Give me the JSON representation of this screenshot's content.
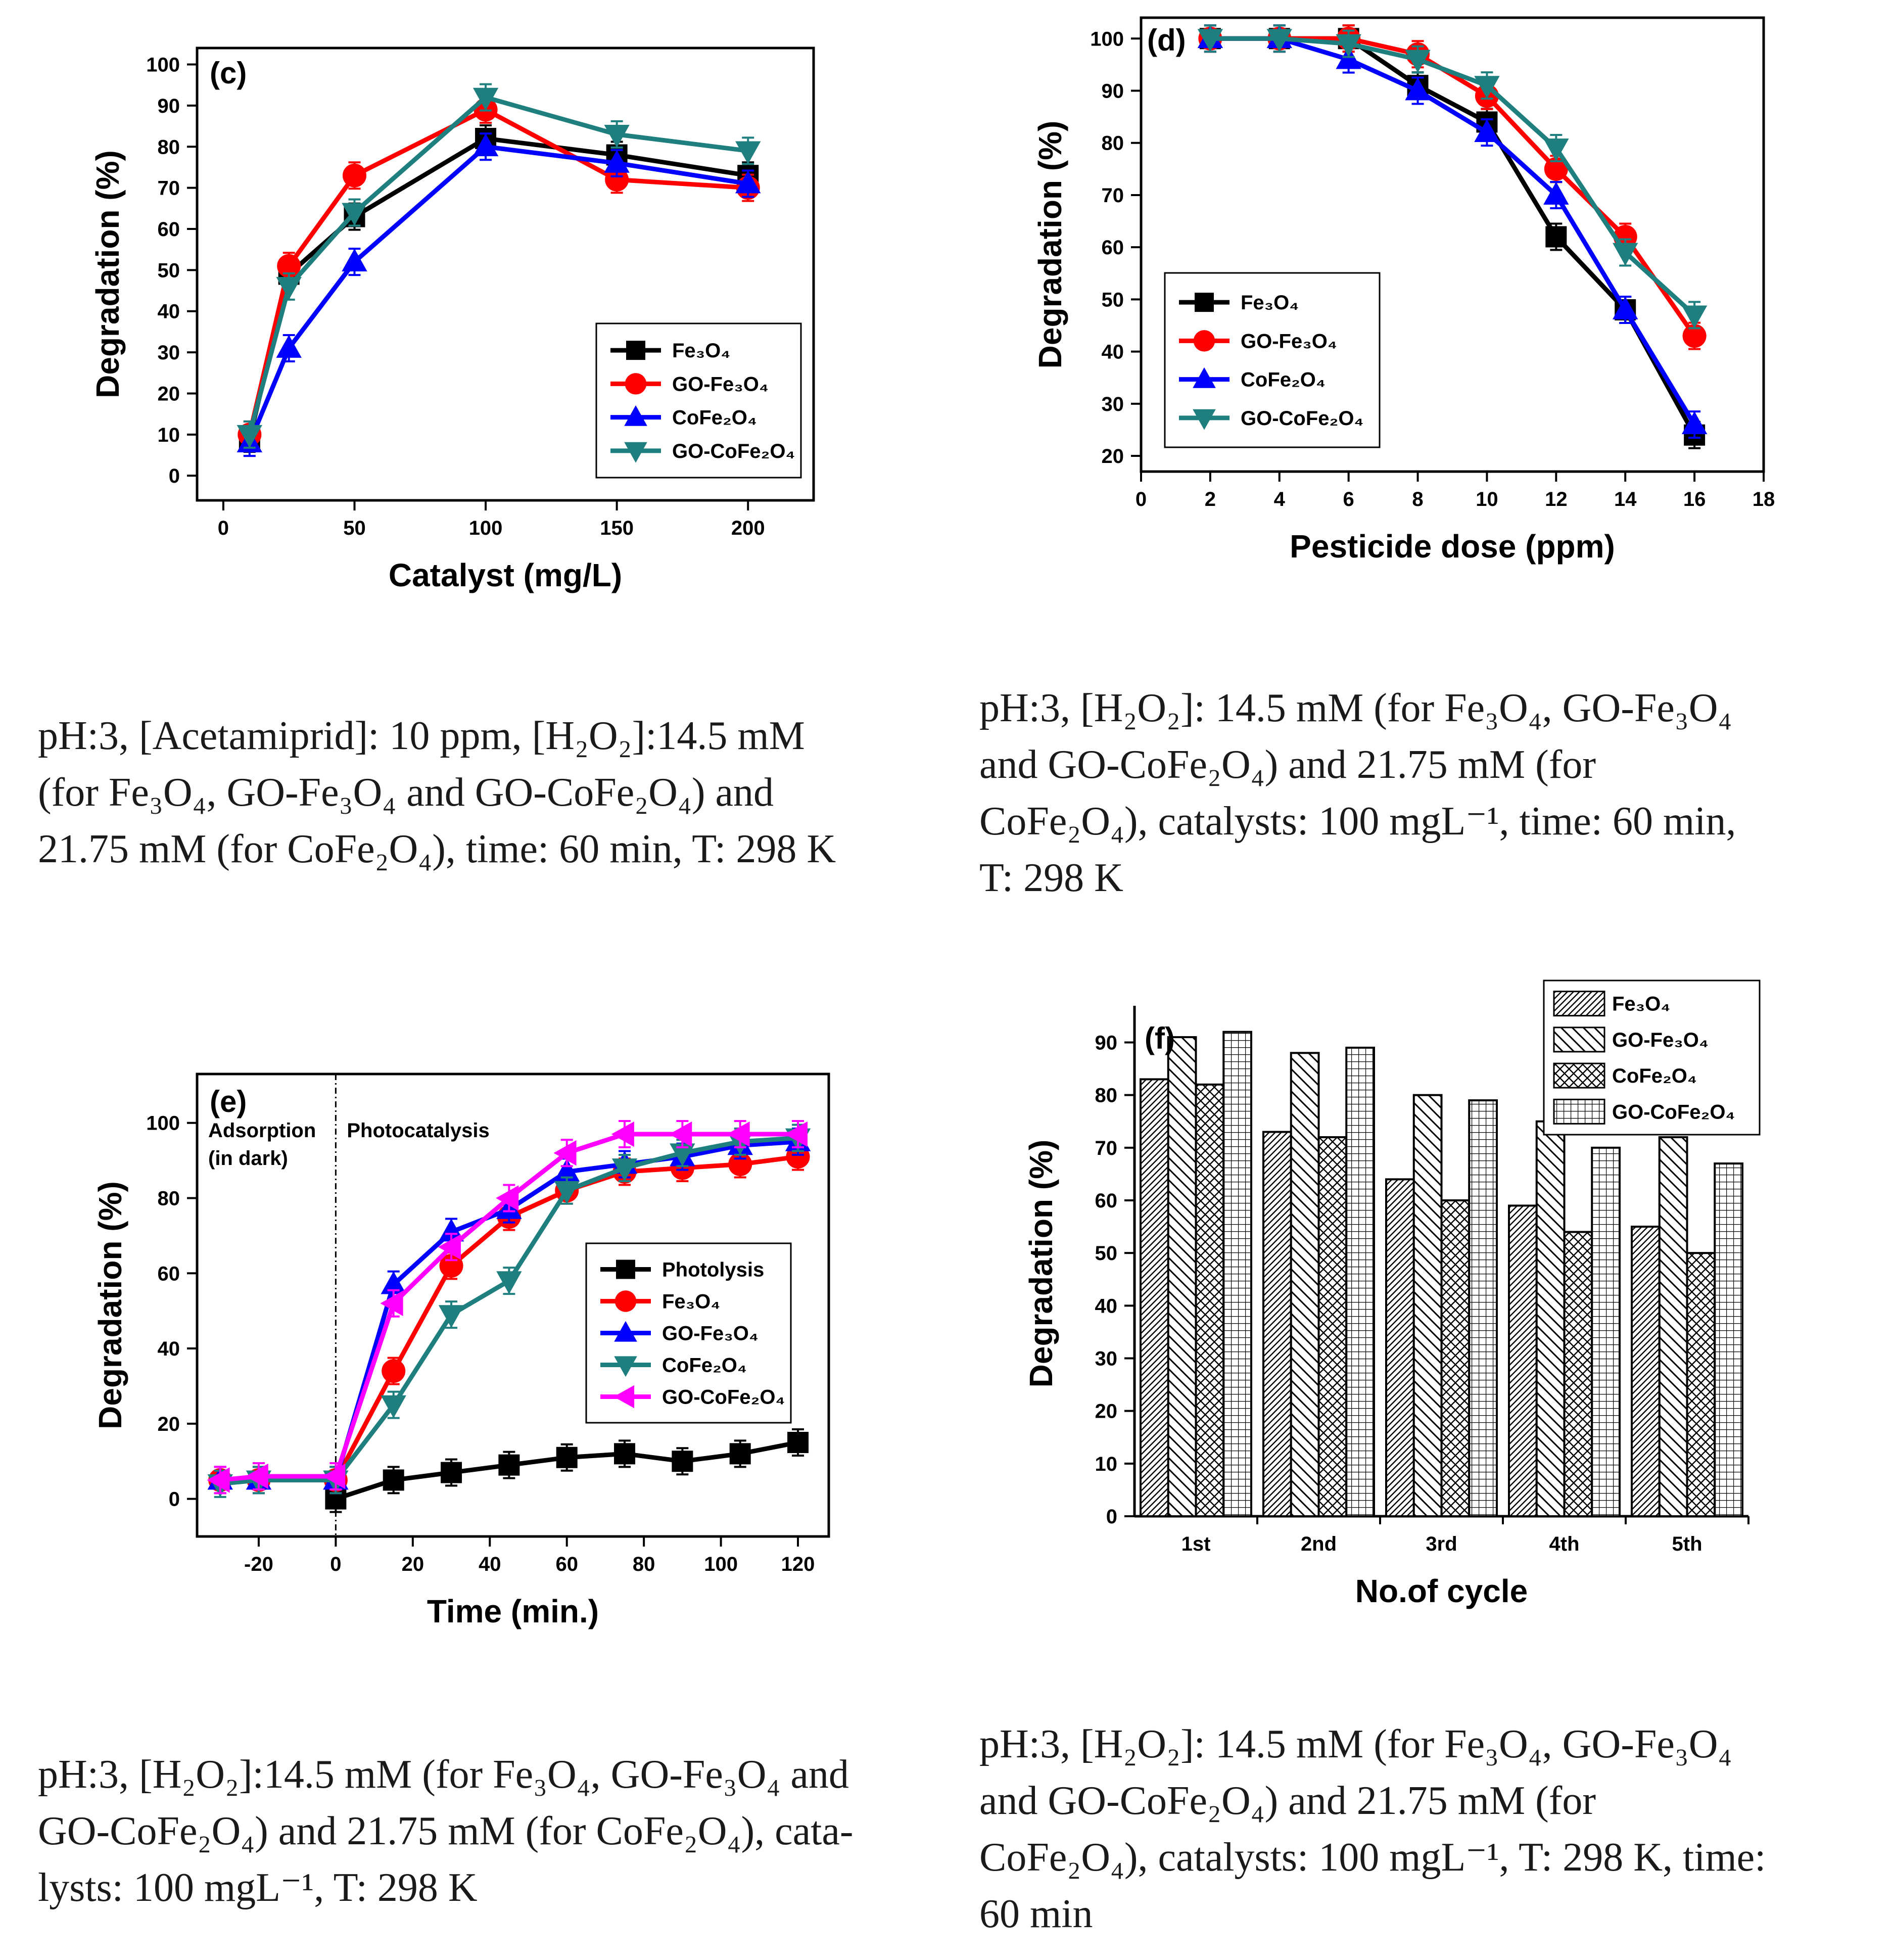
{
  "chart_data": [
    {
      "type": "line",
      "panel_label": "(c)",
      "xlabel": "Catalyst (mg/L)",
      "ylabel": "Degradation (%)",
      "xlim": [
        -10,
        225
      ],
      "ylim": [
        -6,
        104
      ],
      "xticks": [
        "0",
        "50",
        "100",
        "150",
        "200"
      ],
      "yticks": [
        "0",
        "10",
        "20",
        "30",
        "40",
        "50",
        "60",
        "70",
        "80",
        "90",
        "100"
      ],
      "legend_position": "bottom-right",
      "x": [
        10,
        25,
        50,
        100,
        150,
        200
      ],
      "series": [
        {
          "name": "Fe₃O₄",
          "color": "#000000",
          "marker": "square",
          "values": [
            9,
            49,
            63,
            82,
            78,
            73
          ]
        },
        {
          "name": "GO-Fe₃O₄",
          "color": "#ff0000",
          "marker": "circle",
          "values": [
            10,
            51,
            73,
            89,
            72,
            70
          ]
        },
        {
          "name": "CoFe₂O₄",
          "color": "#0000ff",
          "marker": "triangle-up",
          "values": [
            8,
            31,
            52,
            80,
            76,
            71
          ]
        },
        {
          "name": "GO-CoFe₂O₄",
          "color": "#1f7f7f",
          "marker": "triangle-down",
          "values": [
            10,
            46,
            64,
            92,
            83,
            79
          ]
        }
      ]
    },
    {
      "type": "line",
      "panel_label": "(d)",
      "xlabel": "Pesticide dose (ppm)",
      "ylabel": "Degradation (%)",
      "xlim": [
        0,
        18
      ],
      "ylim": [
        17,
        104
      ],
      "xticks": [
        "0",
        "2",
        "4",
        "6",
        "8",
        "10",
        "12",
        "14",
        "16",
        "18"
      ],
      "yticks": [
        "20",
        "30",
        "40",
        "50",
        "60",
        "70",
        "80",
        "90",
        "100"
      ],
      "legend_position": "bottom-left",
      "x": [
        2,
        4,
        6,
        8,
        10,
        12,
        14,
        16
      ],
      "series": [
        {
          "name": "Fe₃O₄",
          "color": "#000000",
          "marker": "square",
          "values": [
            100,
            100,
            100,
            91,
            84,
            62,
            48,
            24
          ]
        },
        {
          "name": "GO-Fe₃O₄",
          "color": "#ff0000",
          "marker": "circle",
          "values": [
            100,
            100,
            100,
            97,
            89,
            75,
            62,
            43
          ]
        },
        {
          "name": "CoFe₂O₄",
          "color": "#0000ff",
          "marker": "triangle-up",
          "values": [
            100,
            100,
            96,
            90,
            82,
            70,
            48,
            26
          ]
        },
        {
          "name": "GO-CoFe₂O₄",
          "color": "#1f7f7f",
          "marker": "triangle-down",
          "values": [
            100,
            100,
            99,
            96,
            91,
            79,
            59,
            47
          ]
        }
      ]
    },
    {
      "type": "line",
      "panel_label": "(e)",
      "xlabel": "Time (min.)",
      "ylabel": "Degradation (%)",
      "xlim": [
        -36,
        128
      ],
      "ylim": [
        -10,
        113
      ],
      "xticks": [
        "-20",
        "0",
        "20",
        "40",
        "60",
        "80",
        "100",
        "120"
      ],
      "yticks": [
        "0",
        "20",
        "40",
        "60",
        "80",
        "100"
      ],
      "legend_position": "center-right",
      "annotations": [
        "Adsorption",
        "(in dark)",
        "Photocatalysis"
      ],
      "divider_x": 0,
      "series": [
        {
          "name": "Photolysis",
          "color": "#000000",
          "marker": "square",
          "x": [
            0,
            15,
            30,
            45,
            60,
            75,
            90,
            105,
            120
          ],
          "values": [
            0,
            5,
            7,
            9,
            11,
            12,
            10,
            12,
            15
          ]
        },
        {
          "name": "Fe₃O₄",
          "color": "#ff0000",
          "marker": "circle",
          "x": [
            -30,
            -20,
            0,
            15,
            30,
            45,
            60,
            75,
            90,
            105,
            120
          ],
          "values": [
            5,
            5,
            5,
            34,
            62,
            75,
            82,
            87,
            88,
            89,
            91
          ]
        },
        {
          "name": "GO-Fe₃O₄",
          "color": "#0000ff",
          "marker": "triangle-up",
          "x": [
            -30,
            -20,
            0,
            15,
            30,
            45,
            60,
            75,
            90,
            105,
            120
          ],
          "values": [
            5,
            5,
            5,
            57,
            71,
            77,
            87,
            89,
            91,
            94,
            95
          ]
        },
        {
          "name": "CoFe₂O₄",
          "color": "#1f7f7f",
          "marker": "triangle-down",
          "x": [
            -30,
            -20,
            0,
            15,
            30,
            45,
            60,
            75,
            90,
            105,
            120
          ],
          "values": [
            4,
            5,
            5,
            25,
            49,
            58,
            82,
            88,
            92,
            95,
            96
          ]
        },
        {
          "name": "GO-CoFe₂O₄",
          "color": "#ff00ff",
          "marker": "triangle-left",
          "x": [
            -30,
            -20,
            0,
            15,
            30,
            45,
            60,
            75,
            90,
            105,
            120
          ],
          "values": [
            5,
            6,
            6,
            52,
            67,
            80,
            92,
            97,
            97,
            97,
            97
          ]
        }
      ]
    },
    {
      "type": "bar",
      "panel_label": "(f)",
      "xlabel": "No.of cycle",
      "ylabel": "Degradation (%)",
      "ylim": [
        0,
        96
      ],
      "yticks": [
        "0",
        "10",
        "20",
        "30",
        "40",
        "50",
        "60",
        "70",
        "80",
        "90"
      ],
      "legend_position": "top-right (outside)",
      "categories": [
        "1st",
        "2nd",
        "3rd",
        "4th",
        "5th"
      ],
      "series": [
        {
          "name": "Fe₃O₄",
          "pattern": "dense-diagonal",
          "values": [
            83,
            73,
            64,
            59,
            55
          ]
        },
        {
          "name": "GO-Fe₃O₄",
          "pattern": "diagonal",
          "values": [
            91,
            88,
            80,
            75,
            72
          ]
        },
        {
          "name": "CoFe₂O₄",
          "pattern": "cross-hatch",
          "values": [
            82,
            72,
            60,
            54,
            50
          ]
        },
        {
          "name": "GO-CoFe₂O₄",
          "pattern": "grid",
          "values": [
            92,
            89,
            79,
            70,
            67
          ]
        }
      ]
    }
  ],
  "captions": [
    {
      "id": "c",
      "lines": [
        "pH:3, [Acetamiprid]: 10 ppm, [H₂O₂]:14.5 mM",
        "(for Fe₃O₄, GO-Fe₃O₄ and GO-CoFe₂O₄) and",
        "21.75 mM (for CoFe₂O₄), time: 60 min, T: 298 K"
      ]
    },
    {
      "id": "d",
      "lines": [
        "pH:3, [H₂O₂]: 14.5 mM (for Fe₃O₄, GO-Fe₃O₄",
        "and GO-CoFe₂O₄) and 21.75 mM (for",
        "CoFe₂O₄), catalysts: 100 mgL⁻¹, time: 60 min,",
        "T: 298 K"
      ]
    },
    {
      "id": "e",
      "lines": [
        "pH:3, [H₂O₂]:14.5 mM (for Fe₃O₄, GO-Fe₃O₄ and",
        "GO-CoFe₂O₄) and 21.75 mM (for CoFe₂O₄), cata-",
        "lysts: 100 mgL⁻¹, T: 298 K"
      ]
    },
    {
      "id": "f",
      "lines": [
        "pH:3, [H₂O₂]: 14.5 mM (for Fe₃O₄, GO-Fe₃O₄",
        "and GO-CoFe₂O₄) and 21.75 mM (for",
        "CoFe₂O₄), catalysts: 100 mgL⁻¹, T: 298 K, time:",
        "60 min"
      ]
    }
  ]
}
